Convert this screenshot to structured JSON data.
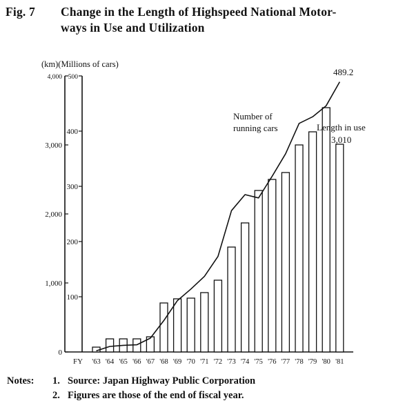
{
  "figure": {
    "number": "Fig. 7",
    "title_line1": "Change in the Length of Highspeed National Motor-",
    "title_line2": "ways in Use and Utilization"
  },
  "chart_data": {
    "type": "bar",
    "units_label": "(km)(Millions of cars)",
    "fy_label": "FY",
    "categories": [
      "'63",
      "'64",
      "'65",
      "'66",
      "'67",
      "'68",
      "'69",
      "'70",
      "'71",
      "'72",
      "'73",
      "'74",
      "'75",
      "'76",
      "'77",
      "'78",
      "'79",
      "'80",
      "'81"
    ],
    "series": [
      {
        "name": "Length in use",
        "type": "bar",
        "axis": "left",
        "values": [
          70,
          190,
          190,
          190,
          220,
          710,
          770,
          780,
          860,
          1040,
          1520,
          1870,
          2340,
          2500,
          2600,
          3000,
          3190,
          3540,
          3010
        ]
      },
      {
        "name": "Number of running cars",
        "type": "line",
        "axis": "right",
        "values": [
          2,
          10,
          12,
          13,
          25,
          57,
          93,
          114,
          137,
          173,
          256,
          285,
          279,
          318,
          359,
          414,
          426,
          446,
          489.2
        ]
      }
    ],
    "left_axis": {
      "ylim": [
        0,
        4000
      ],
      "ticks": [
        "0",
        "1,000",
        "2,000",
        "3,000",
        "4,000"
      ]
    },
    "right_axis": {
      "ylim": [
        0,
        500
      ],
      "ticks": [
        "100",
        "200",
        "300",
        "400",
        "500"
      ]
    },
    "annotations": {
      "cars_label_line1": "Number of",
      "cars_label_line2": "running cars",
      "length_label": "Length in use",
      "length_value": "3,010",
      "cars_value": "489.2"
    }
  },
  "notes": {
    "label": "Notes:",
    "items": [
      {
        "n": "1.",
        "text": "Source:  Japan Highway Public Corporation"
      },
      {
        "n": "2.",
        "text": "Figures are those of the end of fiscal year."
      }
    ]
  }
}
